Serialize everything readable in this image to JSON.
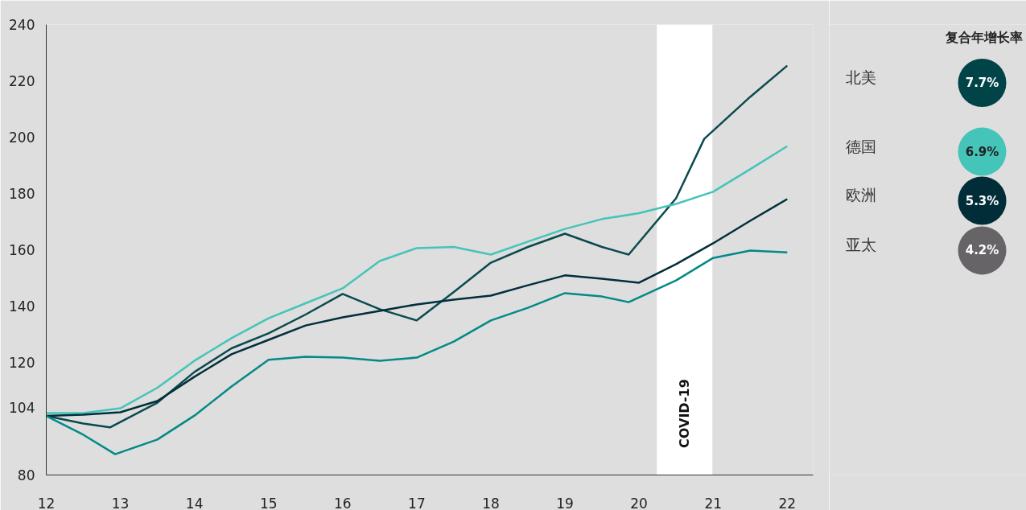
{
  "chart_data": [
    {
      "type": "line",
      "x": [
        12,
        12.5,
        13,
        13.5,
        14,
        14.5,
        15,
        15.5,
        16,
        16.5,
        17,
        17.5,
        18,
        18.5,
        19,
        19.5,
        20,
        20.5,
        21,
        21.5,
        22
      ],
      "series": [
        {
          "name": "北美",
          "color": "#0b4a4f",
          "x": [
            12,
            12.5,
            12.86,
            13.5,
            14,
            14.5,
            15,
            15.5,
            16,
            16.5,
            17,
            17.5,
            18,
            18.5,
            19,
            19.5,
            19.86,
            20.5,
            20.88,
            21.5,
            22
          ],
          "values": [
            101,
            98.3,
            96.9,
            105.7,
            116.6,
            125,
            130.3,
            137,
            144.3,
            138.9,
            134.9,
            145,
            155.4,
            161,
            165.7,
            161,
            158.3,
            178.3,
            199.4,
            214.3,
            225.4
          ]
        },
        {
          "name": "德国",
          "color": "#45c4b9",
          "values": [
            102,
            102,
            103.7,
            111,
            120.6,
            128.6,
            135.7,
            141,
            146.3,
            156,
            160.6,
            161,
            158.3,
            162.9,
            167.4,
            170.9,
            173,
            176.3,
            180.6,
            188.6,
            196.8
          ]
        },
        {
          "name": "欧洲",
          "color": "#012f3b",
          "values": [
            101,
            101.4,
            102.3,
            106.3,
            114.9,
            122.9,
            128,
            133.1,
            136,
            138.3,
            140.6,
            142.3,
            143.7,
            147.4,
            150.9,
            149.7,
            148.3,
            154.9,
            162.3,
            170.3,
            178
          ]
        },
        {
          "name": "亚太",
          "color": "#038a86",
          "x": [
            12,
            12.5,
            12.93,
            13.5,
            14,
            14.5,
            15,
            15.5,
            16,
            16.5,
            17,
            17.5,
            18,
            18.5,
            19,
            19.5,
            19.86,
            20.5,
            21,
            21.5,
            22
          ],
          "values": [
            101,
            94.3,
            87.4,
            92.6,
            101.1,
            111.4,
            120.9,
            122,
            121.7,
            120.6,
            121.7,
            127.4,
            134.9,
            139.4,
            144.6,
            143.4,
            141.4,
            149.1,
            157.1,
            159.7,
            159.1
          ]
        }
      ],
      "xlim": [
        12,
        22.35
      ],
      "ylim": [
        80,
        240
      ],
      "xticks": [
        12,
        13,
        14,
        15,
        16,
        17,
        18,
        19,
        20,
        21,
        22
      ],
      "yticks": [
        80,
        104,
        120,
        140,
        160,
        180,
        200,
        220,
        240
      ],
      "bands": [
        {
          "axis": "x",
          "from": 20.24,
          "to": 20.99,
          "label": "COVID-19",
          "color": "#ffffff"
        }
      ],
      "legend": "right",
      "line_style": "solid"
    },
    {
      "type": "other",
      "title": "复合年增长率",
      "categories": [
        null,
        null,
        null,
        null
      ],
      "values": [
        7.7,
        6.9,
        5.3,
        4.2
      ],
      "value_labels": [
        "7.7%",
        "6.9%",
        "5.3%",
        "4.2%"
      ],
      "colors": [
        "#004448",
        "#45c4b9",
        "#012d38",
        "#666466"
      ]
    }
  ]
}
